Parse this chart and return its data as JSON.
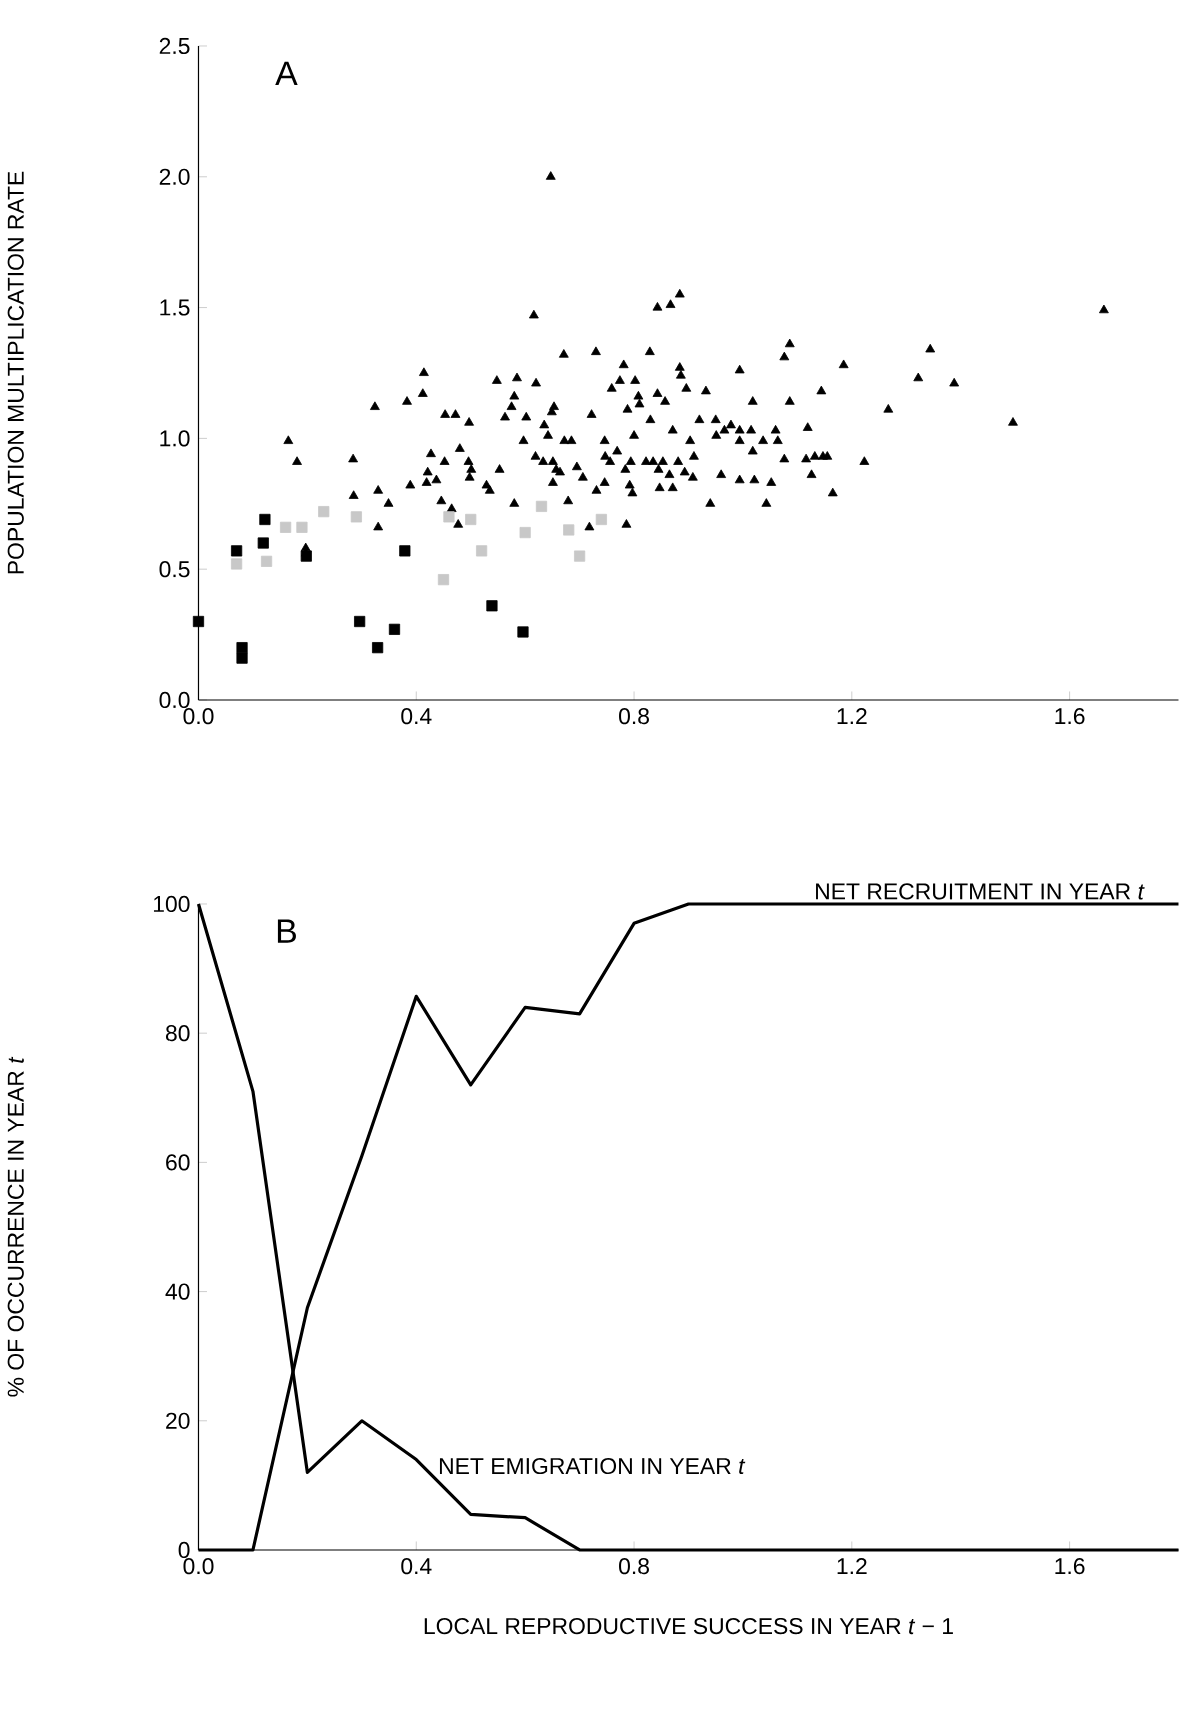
{
  "chart_data": [
    {
      "type": "scatter",
      "title": "A",
      "ylabel": "POPULATION MULTIPLICATION RATE",
      "xlim": [
        0,
        1.8
      ],
      "ylim": [
        0,
        2.5
      ],
      "xticks": [
        {
          "value": 0,
          "label": "0.0"
        },
        {
          "value": 0.4,
          "label": "0.4"
        },
        {
          "value": 0.8,
          "label": "0.8"
        },
        {
          "value": 1.2,
          "label": "1.2"
        },
        {
          "value": 1.6,
          "label": "1.6"
        }
      ],
      "yticks": [
        {
          "value": 0,
          "label": "0.0"
        },
        {
          "value": 0.5,
          "label": "0.5"
        },
        {
          "value": 1,
          "label": "1.0"
        },
        {
          "value": 1.5,
          "label": "1.5"
        },
        {
          "value": 2,
          "label": "2.0"
        },
        {
          "value": 2.5,
          "label": "2.5"
        }
      ],
      "series": [
        {
          "color": "#000000",
          "marker": "triangle",
          "x": [
            0.647,
            0.616,
            0.843,
            0.867,
            0.884,
            1.663,
            0.165,
            0.181,
            0.284,
            0.285,
            0.324,
            0.33,
            0.349,
            0.33,
            0.197,
            0.197,
            0.383,
            0.389,
            0.414,
            0.412,
            0.427,
            0.421,
            0.419,
            0.437,
            0.446,
            0.452,
            0.453,
            0.472,
            0.465,
            0.477,
            0.48,
            0.497,
            0.496,
            0.501,
            0.498,
            0.529,
            0.535,
            0.553,
            0.548,
            0.563,
            0.575,
            0.58,
            0.585,
            0.602,
            0.597,
            0.62,
            0.58,
            0.619,
            0.633,
            0.635,
            0.642,
            0.649,
            0.653,
            0.651,
            0.657,
            0.651,
            0.664,
            0.672,
            0.685,
            0.671,
            0.679,
            0.695,
            0.706,
            0.718,
            0.722,
            0.73,
            0.731,
            0.746,
            0.746,
            0.747,
            0.756,
            0.759,
            0.769,
            0.774,
            0.781,
            0.784,
            0.786,
            0.788,
            0.792,
            0.794,
            0.797,
            0.8,
            0.802,
            0.808,
            0.81,
            0.829,
            0.83,
            0.822,
            0.835,
            0.845,
            0.847,
            0.843,
            0.857,
            0.853,
            0.865,
            0.871,
            0.871,
            0.881,
            0.884,
            0.886,
            0.893,
            0.896,
            0.903,
            0.91,
            0.908,
            0.92,
            0.932,
            0.94,
            0.95,
            0.951,
            0.96,
            0.966,
            0.978,
            0.994,
            0.994,
            0.994,
            0.994,
            1.015,
            1.018,
            1.018,
            1.021,
            1.037,
            1.043,
            1.052,
            1.06,
            1.064,
            1.076,
            1.086,
            1.076,
            1.086,
            1.116,
            1.119,
            1.126,
            1.132,
            1.144,
            1.147,
            1.155,
            1.165,
            1.185,
            1.223,
            1.267,
            1.322,
            1.344,
            1.388,
            1.496
          ],
          "values": [
            2.0,
            1.47,
            1.5,
            1.51,
            1.55,
            1.49,
            0.99,
            0.91,
            0.92,
            0.78,
            1.12,
            0.8,
            0.75,
            0.66,
            0.58,
            0.56,
            1.14,
            0.82,
            1.25,
            1.17,
            0.94,
            0.87,
            0.83,
            0.84,
            0.76,
            0.91,
            1.09,
            1.09,
            0.73,
            0.67,
            0.96,
            1.06,
            0.91,
            0.88,
            0.85,
            0.82,
            0.8,
            0.88,
            1.22,
            1.08,
            1.12,
            1.16,
            1.23,
            1.08,
            0.99,
            1.21,
            0.75,
            0.93,
            0.91,
            1.05,
            1.01,
            1.1,
            1.12,
            0.91,
            0.88,
            0.83,
            0.87,
            0.99,
            0.99,
            1.32,
            0.76,
            0.89,
            0.85,
            0.66,
            1.09,
            1.33,
            0.8,
            0.83,
            0.99,
            0.93,
            0.91,
            1.19,
            0.95,
            1.22,
            1.28,
            0.88,
            0.67,
            1.11,
            0.82,
            0.91,
            0.79,
            1.01,
            1.22,
            1.16,
            1.13,
            1.33,
            1.07,
            0.91,
            0.91,
            0.88,
            0.81,
            1.17,
            1.14,
            0.91,
            0.86,
            0.81,
            1.03,
            0.91,
            1.27,
            1.24,
            0.87,
            1.19,
            0.99,
            0.93,
            0.85,
            1.07,
            1.18,
            0.75,
            1.07,
            1.01,
            0.86,
            1.03,
            1.05,
            1.26,
            1.03,
            0.99,
            0.84,
            1.03,
            1.14,
            0.95,
            0.84,
            0.99,
            0.75,
            0.83,
            1.03,
            0.99,
            1.31,
            1.36,
            0.92,
            1.14,
            0.92,
            1.04,
            0.86,
            0.93,
            1.18,
            0.93,
            0.93,
            0.79,
            1.28,
            0.91,
            1.11,
            1.23,
            1.34,
            1.21,
            1.06
          ]
        },
        {
          "color": "#000000",
          "marker": "square",
          "x": [
            0.0,
            0.07,
            0.119,
            0.122,
            0.198,
            0.379,
            0.296,
            0.36,
            0.539,
            0.596,
            0.08,
            0.08,
            0.329
          ],
          "values": [
            0.3,
            0.57,
            0.6,
            0.69,
            0.55,
            0.57,
            0.3,
            0.27,
            0.36,
            0.26,
            0.2,
            0.16,
            0.2
          ]
        },
        {
          "color": "#c8c8c8",
          "marker": "square",
          "x": [
            0.16,
            0.19,
            0.23,
            0.29,
            0.07,
            0.125,
            0.46,
            0.5,
            0.52,
            0.45,
            0.63,
            0.6,
            0.68,
            0.7,
            0.74
          ],
          "values": [
            0.66,
            0.66,
            0.72,
            0.7,
            0.52,
            0.53,
            0.7,
            0.69,
            0.57,
            0.46,
            0.74,
            0.64,
            0.65,
            0.55,
            0.69
          ]
        }
      ]
    },
    {
      "type": "line",
      "title": "B",
      "xlabel": "LOCAL REPRODUCTIVE SUCCESS IN YEAR *t* − 1",
      "ylabel": "% OF OCCURRENCE IN YEAR *t*",
      "xlim": [
        0,
        1.8
      ],
      "ylim": [
        0,
        100
      ],
      "xticks": [
        {
          "value": 0,
          "label": "0.0"
        },
        {
          "value": 0.4,
          "label": "0.4"
        },
        {
          "value": 0.8,
          "label": "0.8"
        },
        {
          "value": 1.2,
          "label": "1.2"
        },
        {
          "value": 1.6,
          "label": "1.6"
        }
      ],
      "yticks": [
        0,
        20,
        40,
        60,
        80,
        100
      ],
      "marker": "none",
      "line_style": "solid",
      "x": [
        0,
        0.1,
        0.2,
        0.3,
        0.4,
        0.5,
        0.6,
        0.7,
        0.8,
        0.9,
        1.0,
        1.1,
        1.2,
        1.3,
        1.4,
        1.5,
        1.6,
        1.7,
        1.8
      ],
      "series": [
        {
          "name": "NET RECRUITMENT IN YEAR *t*",
          "color": "#000000",
          "values": [
            0,
            0,
            37.5,
            61,
            85.7,
            72,
            84,
            83,
            97,
            100,
            100,
            100,
            100,
            100,
            100,
            100,
            100,
            100,
            100
          ]
        },
        {
          "name": "NET EMIGRATION IN YEAR *t*",
          "color": "#000000",
          "values": [
            100,
            71,
            12,
            20,
            14,
            5.5,
            5,
            0,
            0,
            0,
            0,
            0,
            0,
            0,
            0,
            0,
            0,
            0,
            0
          ]
        }
      ]
    }
  ]
}
